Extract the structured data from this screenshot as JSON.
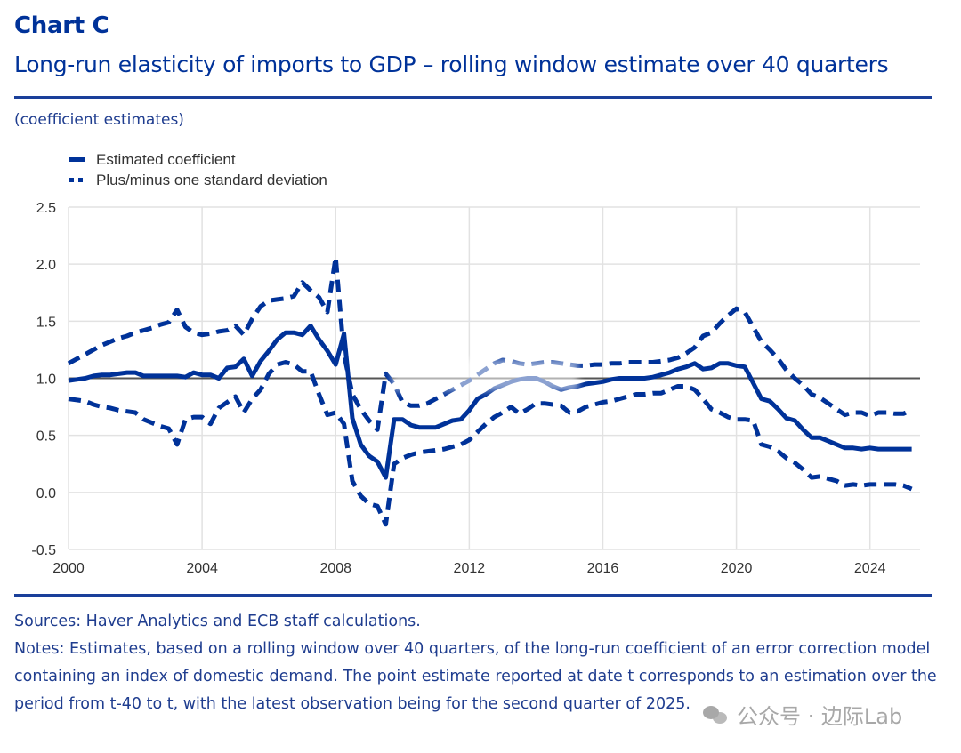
{
  "header": {
    "chart_label": "Chart C",
    "title": "Long-run elasticity of imports to GDP – rolling window estimate over 40 quarters",
    "unit": "(coefficient estimates)"
  },
  "legend": {
    "items": [
      {
        "label": "Estimated coefficient",
        "style": "solid"
      },
      {
        "label": "Plus/minus one standard deviation",
        "style": "dashed"
      }
    ]
  },
  "footer": {
    "sources": "Sources: Haver Analytics and ECB staff calculations.",
    "notes": "Notes: Estimates, based on a rolling window over 40 quarters, of the long-run coefficient of an error correction model containing an index of domestic demand. The point estimate reported at date t corresponds to an estimation over the period from t-40 to t, with the latest observation being for the second quarter of 2025."
  },
  "watermark": {
    "text": "公众号 · 边际Lab"
  },
  "colors": {
    "series": "#003299",
    "reference_line": "#555555",
    "grid": "#e2e2e2",
    "title": "#003299"
  },
  "chart_data": {
    "type": "line",
    "title": "Long-run elasticity of imports to GDP – rolling window estimate over 40 quarters",
    "subtitle": "(coefficient estimates)",
    "xlabel": "",
    "ylabel": "",
    "xlim": [
      2000,
      2025.5
    ],
    "ylim": [
      -0.5,
      2.5
    ],
    "xticks": [
      2000,
      2004,
      2008,
      2012,
      2016,
      2020,
      2024
    ],
    "xtick_labels": [
      "2000",
      "2004",
      "2008",
      "2012",
      "2016",
      "2020",
      "2024"
    ],
    "yticks": [
      -0.5,
      0.0,
      0.5,
      1.0,
      1.5,
      2.0,
      2.5
    ],
    "ytick_labels": [
      "-0.5",
      "0.0",
      "0.5",
      "1.0",
      "1.5",
      "2.0",
      "2.5"
    ],
    "grid": true,
    "reference_line": 1.0,
    "legend_position": "top-left",
    "note": "Values between roughly 2009.5 and 2014.5 near the 1.0 line are partly obscured by a blurred watermark in the source image and are interpolated estimates.",
    "x": [
      2000.0,
      2000.25,
      2000.5,
      2000.75,
      2001.0,
      2001.25,
      2001.5,
      2001.75,
      2002.0,
      2002.25,
      2002.5,
      2002.75,
      2003.0,
      2003.25,
      2003.5,
      2003.75,
      2004.0,
      2004.25,
      2004.5,
      2004.75,
      2005.0,
      2005.25,
      2005.5,
      2005.75,
      2006.0,
      2006.25,
      2006.5,
      2006.75,
      2007.0,
      2007.25,
      2007.5,
      2007.75,
      2008.0,
      2008.25,
      2008.5,
      2008.75,
      2009.0,
      2009.25,
      2009.5,
      2009.75,
      2010.0,
      2010.25,
      2010.5,
      2010.75,
      2011.0,
      2011.25,
      2011.5,
      2011.75,
      2012.0,
      2012.25,
      2012.5,
      2012.75,
      2013.0,
      2013.25,
      2013.5,
      2013.75,
      2014.0,
      2014.25,
      2014.5,
      2014.75,
      2015.0,
      2015.25,
      2015.5,
      2015.75,
      2016.0,
      2016.25,
      2016.5,
      2016.75,
      2017.0,
      2017.25,
      2017.5,
      2017.75,
      2018.0,
      2018.25,
      2018.5,
      2018.75,
      2019.0,
      2019.25,
      2019.5,
      2019.75,
      2020.0,
      2020.25,
      2020.5,
      2020.75,
      2021.0,
      2021.25,
      2021.5,
      2021.75,
      2022.0,
      2022.25,
      2022.5,
      2022.75,
      2023.0,
      2023.25,
      2023.5,
      2023.75,
      2024.0,
      2024.25,
      2024.5,
      2024.75,
      2025.0,
      2025.25
    ],
    "series": [
      {
        "name": "Estimated coefficient",
        "style": "solid",
        "values": [
          0.98,
          0.99,
          1.0,
          1.02,
          1.03,
          1.03,
          1.04,
          1.05,
          1.05,
          1.02,
          1.02,
          1.02,
          1.02,
          1.02,
          1.01,
          1.05,
          1.03,
          1.03,
          1.0,
          1.09,
          1.1,
          1.17,
          1.02,
          1.15,
          1.24,
          1.34,
          1.4,
          1.4,
          1.38,
          1.46,
          1.34,
          1.24,
          1.12,
          1.39,
          0.65,
          0.42,
          0.32,
          0.27,
          0.13,
          0.64,
          0.64,
          0.59,
          0.57,
          0.57,
          0.57,
          0.6,
          0.63,
          0.64,
          0.72,
          0.82,
          0.86,
          0.91,
          0.94,
          0.97,
          0.99,
          1.0,
          1.0,
          0.97,
          0.93,
          0.9,
          0.92,
          0.93,
          0.95,
          0.96,
          0.97,
          0.99,
          1.0,
          1.0,
          1.0,
          1.0,
          1.01,
          1.03,
          1.05,
          1.08,
          1.1,
          1.13,
          1.08,
          1.09,
          1.13,
          1.13,
          1.11,
          1.1,
          0.96,
          0.82,
          0.8,
          0.73,
          0.65,
          0.63,
          0.55,
          0.48,
          0.48,
          0.45,
          0.42,
          0.39,
          0.39,
          0.38,
          0.39,
          0.38,
          0.38,
          0.38,
          0.38,
          0.38
        ]
      },
      {
        "name": "Plus one standard deviation",
        "style": "dashed",
        "values": [
          1.13,
          1.17,
          1.21,
          1.25,
          1.29,
          1.32,
          1.35,
          1.37,
          1.4,
          1.42,
          1.44,
          1.47,
          1.49,
          1.6,
          1.45,
          1.4,
          1.38,
          1.39,
          1.41,
          1.42,
          1.46,
          1.38,
          1.52,
          1.63,
          1.68,
          1.69,
          1.7,
          1.72,
          1.84,
          1.77,
          1.71,
          1.58,
          2.06,
          1.21,
          0.86,
          0.73,
          0.63,
          0.55,
          1.04,
          0.95,
          0.79,
          0.76,
          0.76,
          0.78,
          0.82,
          0.86,
          0.9,
          0.94,
          0.98,
          1.03,
          1.08,
          1.13,
          1.16,
          1.15,
          1.13,
          1.12,
          1.13,
          1.14,
          1.14,
          1.13,
          1.12,
          1.11,
          1.11,
          1.12,
          1.12,
          1.13,
          1.13,
          1.14,
          1.14,
          1.14,
          1.14,
          1.15,
          1.16,
          1.18,
          1.22,
          1.27,
          1.37,
          1.4,
          1.48,
          1.55,
          1.61,
          1.58,
          1.45,
          1.32,
          1.25,
          1.17,
          1.07,
          1.0,
          0.94,
          0.86,
          0.83,
          0.78,
          0.73,
          0.68,
          0.7,
          0.7,
          0.67,
          0.7,
          0.7,
          0.69,
          0.69,
          0.72
        ]
      },
      {
        "name": "Minus one standard deviation",
        "style": "dashed",
        "values": [
          0.82,
          0.81,
          0.8,
          0.77,
          0.75,
          0.74,
          0.72,
          0.71,
          0.7,
          0.64,
          0.61,
          0.58,
          0.56,
          0.42,
          0.64,
          0.66,
          0.66,
          0.6,
          0.74,
          0.79,
          0.84,
          0.7,
          0.82,
          0.9,
          1.04,
          1.12,
          1.14,
          1.12,
          1.06,
          1.06,
          0.86,
          0.68,
          0.7,
          0.6,
          0.1,
          -0.03,
          -0.1,
          -0.12,
          -0.28,
          0.25,
          0.3,
          0.33,
          0.35,
          0.36,
          0.37,
          0.38,
          0.4,
          0.42,
          0.46,
          0.53,
          0.6,
          0.66,
          0.7,
          0.75,
          0.69,
          0.73,
          0.78,
          0.78,
          0.77,
          0.76,
          0.7,
          0.71,
          0.75,
          0.77,
          0.79,
          0.8,
          0.82,
          0.84,
          0.86,
          0.86,
          0.87,
          0.87,
          0.9,
          0.93,
          0.93,
          0.9,
          0.82,
          0.73,
          0.7,
          0.66,
          0.64,
          0.64,
          0.63,
          0.42,
          0.4,
          0.36,
          0.3,
          0.26,
          0.2,
          0.13,
          0.14,
          0.12,
          0.1,
          0.06,
          0.07,
          0.06,
          0.07,
          0.07,
          0.07,
          0.07,
          0.06,
          0.03
        ]
      }
    ]
  }
}
